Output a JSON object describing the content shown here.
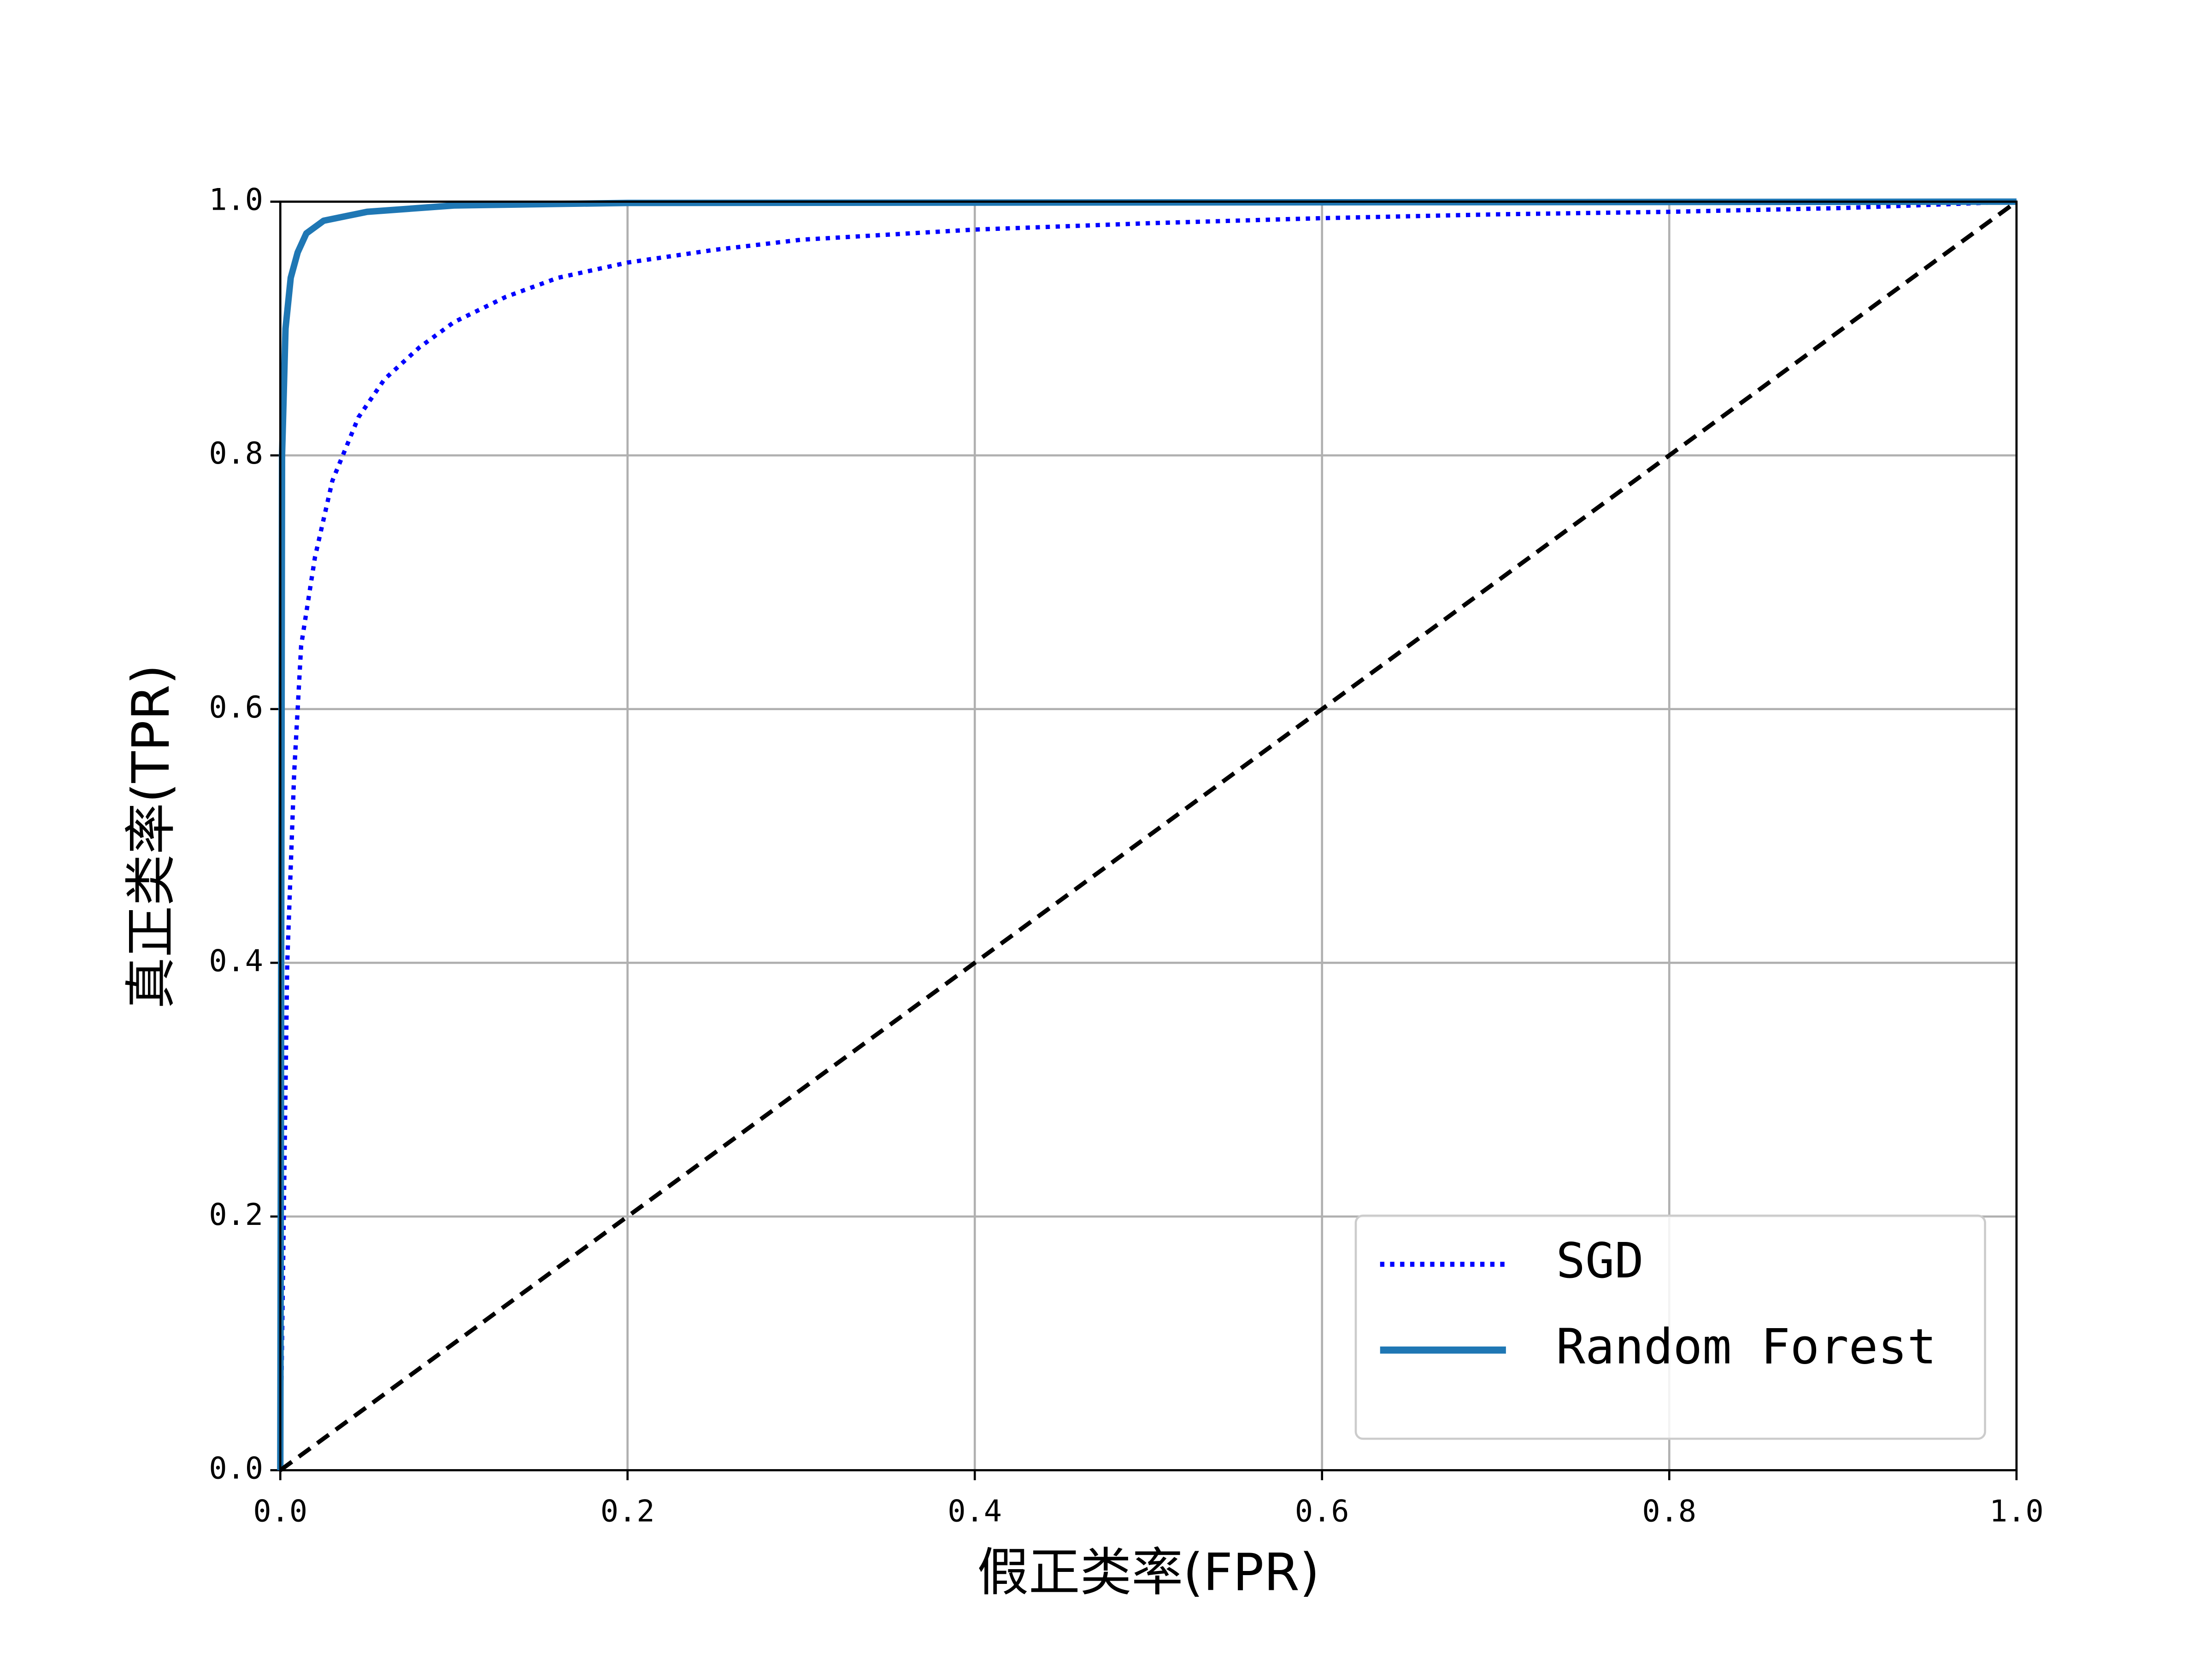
{
  "chart_data": {
    "type": "line",
    "xlabel": "假正类率(FPR)",
    "ylabel": "真正类率(TPR)",
    "xlim": [
      0,
      1
    ],
    "ylim": [
      0,
      1
    ],
    "xticks": [
      {
        "value": 0,
        "label": "0.0"
      },
      0.2,
      0.4,
      0.6,
      0.8,
      {
        "value": 1,
        "label": "1.0"
      }
    ],
    "yticks": [
      {
        "value": 0,
        "label": "0.0"
      },
      0.2,
      0.4,
      0.6,
      0.8,
      {
        "value": 1,
        "label": "1.0"
      }
    ],
    "grid": true,
    "legend": "lower right",
    "series": [
      {
        "name": "SGD",
        "color": "#0000ff",
        "style": "dotted",
        "x": [
          0,
          0.002,
          0.004,
          0.008,
          0.012,
          0.02,
          0.03,
          0.045,
          0.06,
          0.08,
          0.1,
          0.13,
          0.16,
          0.2,
          0.25,
          0.3,
          0.4,
          0.5,
          0.6,
          0.7,
          0.8,
          0.9,
          1
        ],
        "values": [
          0,
          0.2,
          0.4,
          0.55,
          0.65,
          0.72,
          0.78,
          0.83,
          0.86,
          0.885,
          0.905,
          0.925,
          0.94,
          0.952,
          0.962,
          0.97,
          0.978,
          0.983,
          0.987,
          0.99,
          0.992,
          0.995,
          1
        ]
      },
      {
        "name": "Random Forest",
        "color": "#1f77b4",
        "style": "solid",
        "x": [
          0,
          0.001,
          0.003,
          0.006,
          0.01,
          0.015,
          0.025,
          0.05,
          0.1,
          0.2,
          1
        ],
        "values": [
          0,
          0.8,
          0.9,
          0.94,
          0.96,
          0.975,
          0.985,
          0.992,
          0.997,
          0.999,
          1
        ]
      },
      {
        "color": "#000000",
        "style": "dashed",
        "x": [
          0,
          1
        ],
        "values": [
          0,
          1
        ]
      }
    ]
  }
}
